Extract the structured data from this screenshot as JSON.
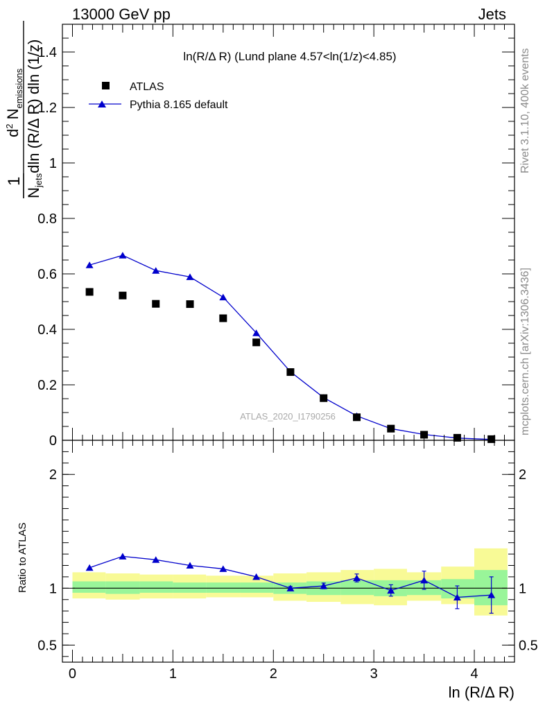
{
  "header": {
    "energy": "13000 GeV pp",
    "category": "Jets"
  },
  "side_labels": {
    "rivet": "Rivet 3.1.10,  400k events",
    "mcplots": "mcplots.cern.ch [arXiv:1306.3436]"
  },
  "chart_data": [
    {
      "type": "scatter",
      "title": "ln(R/Δ R) (Lund plane 4.57<ln(1/z)<4.85)",
      "watermark": "ATLAS_2020_I1790256",
      "xlabel": "ln (R/Δ R)",
      "ylabel": "1/N_jets d²N_emissions / dln(R/ΔR) dln(1/z)",
      "xlim": [
        -0.1,
        4.4
      ],
      "ylim": [
        0,
        1.5
      ],
      "xticks": [
        0,
        1,
        2,
        3,
        4
      ],
      "xtick_labels": [
        "0",
        "1",
        "2",
        "3",
        "4"
      ],
      "yticks": [
        0,
        0.2,
        0.4,
        0.6,
        0.8,
        1,
        1.2,
        1.4
      ],
      "ytick_labels": [
        "0",
        "0.2",
        "0.4",
        "0.6",
        "0.8",
        "1",
        "1.2",
        "1.4"
      ],
      "legend": {
        "position": "top-left",
        "entries": [
          "ATLAS",
          "Pythia 8.165 default"
        ]
      },
      "x": [
        0.17,
        0.5,
        0.83,
        1.17,
        1.5,
        1.83,
        2.17,
        2.5,
        2.83,
        3.17,
        3.5,
        3.83,
        4.17
      ],
      "series": [
        {
          "name": "ATLAS",
          "marker": "square",
          "color": "#000000",
          "values": [
            0.535,
            0.522,
            0.492,
            0.491,
            0.44,
            0.353,
            0.246,
            0.152,
            0.083,
            0.042,
            0.02,
            0.009,
            0.004
          ]
        },
        {
          "name": "Pythia 8.165 default",
          "marker": "triangle",
          "color": "#0000cc",
          "values": [
            0.632,
            0.667,
            0.612,
            0.589,
            0.516,
            0.387,
            0.247,
            0.154,
            0.088,
            0.042,
            0.021,
            0.008,
            0.003
          ]
        }
      ]
    },
    {
      "type": "ratio",
      "ylabel": "Ratio to ATLAS",
      "xlabel": "ln (R/Δ R)",
      "xlim": [
        -0.1,
        4.4
      ],
      "ylim": [
        0.35,
        2.3
      ],
      "yticks": [
        0.5,
        1,
        2
      ],
      "ytick_labels": [
        "0.5",
        "1",
        "2"
      ],
      "x_edges": [
        0,
        0.33,
        0.67,
        1,
        1.33,
        1.67,
        2,
        2.33,
        2.67,
        3,
        3.33,
        3.67,
        4,
        4.33
      ],
      "band_inner": [
        [
          0.96,
          1.06
        ],
        [
          0.95,
          1.06
        ],
        [
          0.96,
          1.06
        ],
        [
          0.96,
          1.05
        ],
        [
          0.96,
          1.05
        ],
        [
          0.96,
          1.05
        ],
        [
          0.95,
          1.05
        ],
        [
          0.94,
          1.06
        ],
        [
          0.94,
          1.07
        ],
        [
          0.93,
          1.07
        ],
        [
          0.94,
          1.07
        ],
        [
          0.91,
          1.08
        ],
        [
          0.85,
          1.16
        ]
      ],
      "band_outer": [
        [
          0.91,
          1.14
        ],
        [
          0.9,
          1.13
        ],
        [
          0.91,
          1.12
        ],
        [
          0.91,
          1.12
        ],
        [
          0.92,
          1.11
        ],
        [
          0.92,
          1.11
        ],
        [
          0.89,
          1.13
        ],
        [
          0.88,
          1.14
        ],
        [
          0.86,
          1.16
        ],
        [
          0.85,
          1.17
        ],
        [
          0.89,
          1.14
        ],
        [
          0.86,
          1.19
        ],
        [
          0.76,
          1.35
        ]
      ],
      "series": [
        {
          "name": "Pythia 8.165 default / ATLAS",
          "color": "#0000cc",
          "values": [
            1.18,
            1.28,
            1.25,
            1.2,
            1.17,
            1.1,
            1.0,
            1.02,
            1.09,
            0.98,
            1.07,
            0.92,
            0.94
          ],
          "errors": [
            0,
            0,
            0,
            0,
            0,
            0,
            0.015,
            0.025,
            0.035,
            0.05,
            0.08,
            0.1,
            0.16
          ]
        }
      ]
    }
  ],
  "colors": {
    "pythia": "#0000cc",
    "band_inner": "#99f599",
    "band_outer": "#f8fa96",
    "data": "#000000"
  }
}
